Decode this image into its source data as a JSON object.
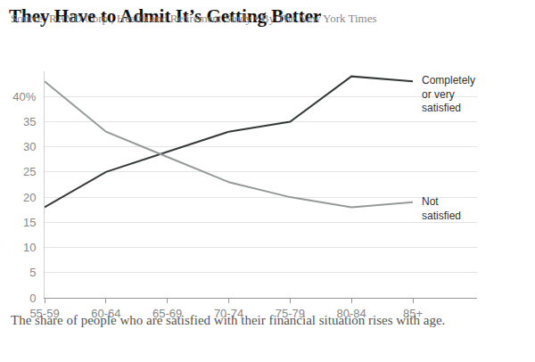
{
  "chart_data": {
    "type": "line",
    "title": "They Have to Admit It’s Getting Better",
    "subtitle": "The share of people who are satisfied with their financial situation rises with age.",
    "source": "Source: RAND Corp., Health and Retirement Study • By The New York Times",
    "categories": [
      "55-59",
      "60-64",
      "65-69",
      "70-74",
      "75-79",
      "80-84",
      "85+"
    ],
    "series": [
      {
        "name": "Completely or very satisfied",
        "color": "#333a3a",
        "values": [
          18,
          25,
          29,
          33,
          35,
          44,
          43
        ]
      },
      {
        "name": "Not satisfied",
        "color": "#939a9a",
        "values": [
          43,
          33,
          28,
          23,
          20,
          18,
          19
        ]
      }
    ],
    "ylim": [
      0,
      45
    ],
    "yticks": [
      0,
      5,
      10,
      15,
      20,
      25,
      30,
      35,
      {
        "value": 40,
        "label": "40%"
      }
    ],
    "grid": true
  }
}
